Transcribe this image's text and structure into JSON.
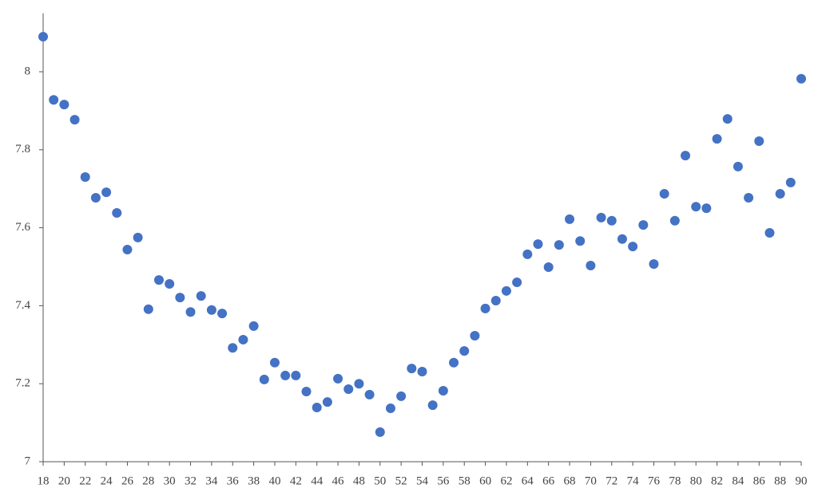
{
  "chart_data": {
    "type": "scatter",
    "color": "#4472c4",
    "x": [
      18,
      19,
      20,
      21,
      22,
      23,
      24,
      25,
      26,
      27,
      28,
      29,
      30,
      31,
      32,
      33,
      34,
      35,
      36,
      37,
      38,
      39,
      40,
      41,
      42,
      43,
      44,
      45,
      46,
      47,
      48,
      49,
      50,
      51,
      52,
      53,
      54,
      55,
      56,
      57,
      58,
      59,
      60,
      61,
      62,
      63,
      64,
      65,
      66,
      67,
      68,
      69,
      70,
      71,
      72,
      73,
      74,
      75,
      76,
      77,
      78,
      79,
      80,
      81,
      82,
      83,
      84,
      85,
      86,
      87,
      88,
      89,
      90
    ],
    "y": [
      8.09,
      7.928,
      7.916,
      7.877,
      7.73,
      7.677,
      7.691,
      7.638,
      7.544,
      7.575,
      7.391,
      7.466,
      7.456,
      7.421,
      7.384,
      7.425,
      7.389,
      7.38,
      7.292,
      7.313,
      7.348,
      7.211,
      7.254,
      7.221,
      7.221,
      7.18,
      7.139,
      7.153,
      7.213,
      7.186,
      7.2,
      7.172,
      7.076,
      7.137,
      7.168,
      7.239,
      7.231,
      7.145,
      7.182,
      7.254,
      7.284,
      7.323,
      7.393,
      7.413,
      7.438,
      7.46,
      7.532,
      7.558,
      7.499,
      7.556,
      7.622,
      7.566,
      7.503,
      7.626,
      7.618,
      7.571,
      7.552,
      7.607,
      7.507,
      7.687,
      7.618,
      7.785,
      7.654,
      7.65,
      7.828,
      7.879,
      7.757,
      7.677,
      7.822,
      7.587,
      7.687,
      7.716,
      7.982
    ],
    "xlim": [
      18,
      90
    ],
    "ylim": [
      7,
      8.15
    ],
    "xticks": [
      18,
      20,
      22,
      24,
      26,
      28,
      30,
      32,
      34,
      36,
      38,
      40,
      42,
      44,
      46,
      48,
      50,
      52,
      54,
      56,
      58,
      60,
      62,
      64,
      66,
      68,
      70,
      72,
      74,
      76,
      78,
      80,
      82,
      84,
      86,
      88,
      90
    ],
    "yticks": [
      7,
      7.2,
      7.4,
      7.6,
      7.8,
      8
    ]
  }
}
